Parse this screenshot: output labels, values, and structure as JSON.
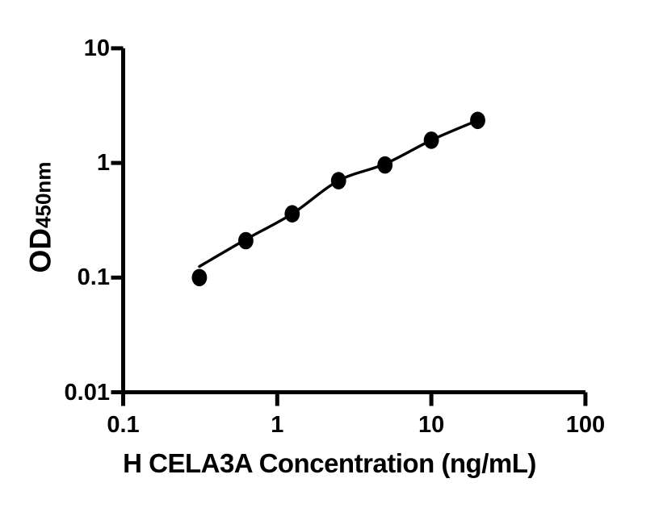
{
  "figure": {
    "background": "#ffffff",
    "x_axis_title": "H CELA3A Concentration (ng/mL)",
    "y_axis_title_main": "OD",
    "y_axis_title_sub": "450nm"
  },
  "chart_data": {
    "type": "scatter",
    "title": "",
    "xlabel": "H CELA3A Concentration (ng/mL)",
    "ylabel": "OD450nm",
    "x_scale": "log",
    "y_scale": "log",
    "xlim": [
      0.1,
      100
    ],
    "ylim": [
      0.01,
      10
    ],
    "grid": false,
    "legend": false,
    "marker_color": "#000000",
    "line_color": "#000000",
    "axis_color": "#000000",
    "x_ticks": [
      {
        "value": 0.1,
        "label": "0.1"
      },
      {
        "value": 1,
        "label": "1"
      },
      {
        "value": 10,
        "label": "10"
      },
      {
        "value": 100,
        "label": "100"
      }
    ],
    "y_ticks": [
      {
        "value": 0.01,
        "label": "0.01"
      },
      {
        "value": 0.1,
        "label": "0.1"
      },
      {
        "value": 1,
        "label": "1"
      },
      {
        "value": 10,
        "label": "10"
      }
    ],
    "points": [
      {
        "x": 0.3125,
        "y": 0.1
      },
      {
        "x": 0.625,
        "y": 0.21
      },
      {
        "x": 1.25,
        "y": 0.36
      },
      {
        "x": 2.5,
        "y": 0.7
      },
      {
        "x": 5,
        "y": 0.96
      },
      {
        "x": 10,
        "y": 1.58
      },
      {
        "x": 20,
        "y": 2.35
      }
    ],
    "fit_curve": [
      {
        "x": 0.3125,
        "y": 0.125
      },
      {
        "x": 0.625,
        "y": 0.215
      },
      {
        "x": 1.25,
        "y": 0.36
      },
      {
        "x": 2.5,
        "y": 0.7
      },
      {
        "x": 5,
        "y": 0.98
      },
      {
        "x": 10,
        "y": 1.58
      },
      {
        "x": 20,
        "y": 2.35
      }
    ]
  }
}
